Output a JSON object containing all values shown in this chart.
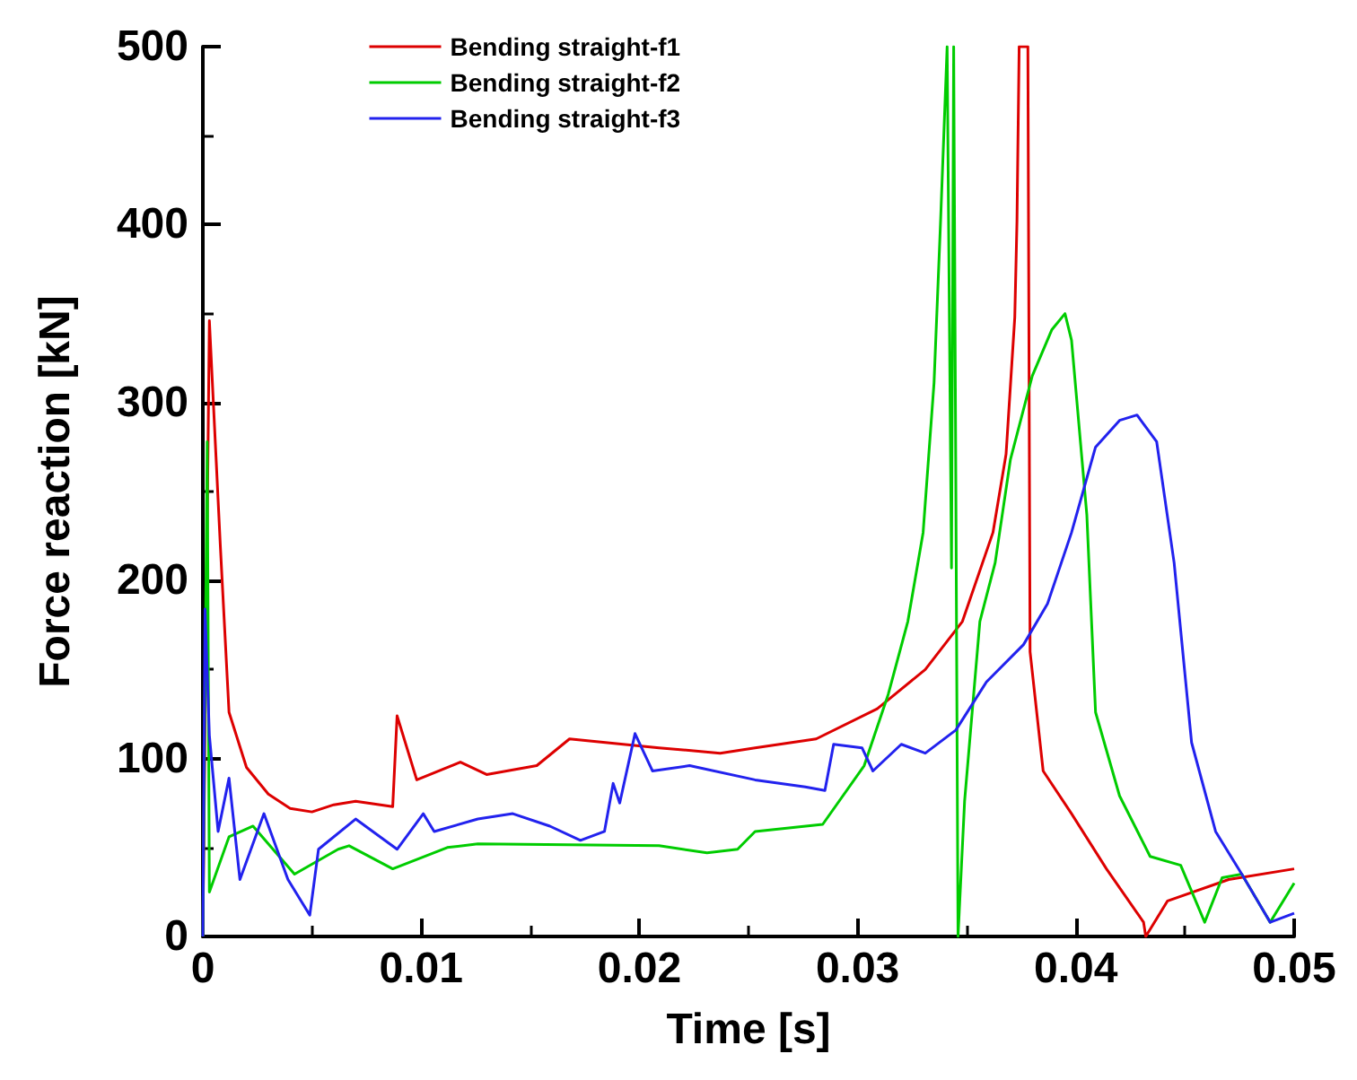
{
  "chart_data": {
    "type": "line",
    "xlabel": "Time [s]",
    "ylabel": "Force reaction [kN]",
    "xlim": [
      0,
      0.05
    ],
    "ylim": [
      0,
      500
    ],
    "xticks": [
      0,
      0.01,
      0.02,
      0.03,
      0.04,
      0.05
    ],
    "yticks": [
      0,
      100,
      200,
      300,
      400,
      500
    ],
    "legend": "top left",
    "series": [
      {
        "name": "Bending straight-f1",
        "color": "#dd0000",
        "x": [
          0,
          0.0003,
          0.0008,
          0.0012,
          0.002,
          0.003,
          0.004,
          0.005,
          0.006,
          0.007,
          0.0087,
          0.0089,
          0.0098,
          0.0118,
          0.013,
          0.0153,
          0.0168,
          0.0209,
          0.0237,
          0.0253,
          0.0281,
          0.0309,
          0.0331,
          0.0348,
          0.0362,
          0.0368,
          0.0372,
          0.0373,
          0.0374,
          0.0378,
          0.0379,
          0.0385,
          0.0398,
          0.0414,
          0.0431,
          0.0432,
          0.0442,
          0.047,
          0.05
        ],
        "values": [
          0,
          346,
          220,
          126,
          95,
          80,
          72,
          70,
          74,
          76,
          73,
          124,
          88,
          98,
          91,
          96,
          111,
          106,
          103,
          106,
          111,
          128,
          150,
          177,
          227,
          271,
          348,
          402,
          500,
          500,
          160,
          93,
          69,
          38,
          8,
          0,
          20,
          32,
          38
        ]
      },
      {
        "name": "Bending straight-f2",
        "color": "#00cc00",
        "x": [
          0,
          0.0002,
          0.0003,
          0.0012,
          0.0023,
          0.0042,
          0.0062,
          0.0067,
          0.0087,
          0.0112,
          0.0126,
          0.0209,
          0.0231,
          0.0245,
          0.0253,
          0.0284,
          0.0303,
          0.0314,
          0.0323,
          0.033,
          0.0335,
          0.0338,
          0.0341,
          0.0343,
          0.0344,
          0.0346,
          0.0349,
          0.0356,
          0.0363,
          0.037,
          0.038,
          0.0389,
          0.0395,
          0.0398,
          0.0405,
          0.0409,
          0.042,
          0.0434,
          0.0448,
          0.0459,
          0.0467,
          0.0476,
          0.0489,
          0.05
        ],
        "values": [
          0,
          278,
          25,
          56,
          62,
          35,
          49,
          51,
          38,
          50,
          52,
          51,
          47,
          49,
          59,
          63,
          96,
          136,
          177,
          227,
          311,
          402,
          500,
          207,
          500,
          0,
          76,
          177,
          210,
          268,
          315,
          341,
          350,
          335,
          237,
          126,
          79,
          45,
          40,
          8,
          33,
          35,
          8,
          30
        ]
      },
      {
        "name": "Bending straight-f3",
        "color": "#2222ee",
        "x": [
          0,
          0.0001,
          0.0003,
          0.0007,
          0.0012,
          0.0017,
          0.0028,
          0.0039,
          0.0049,
          0.0053,
          0.007,
          0.0089,
          0.0101,
          0.0106,
          0.0126,
          0.0142,
          0.0159,
          0.0173,
          0.0184,
          0.0188,
          0.0191,
          0.0198,
          0.0206,
          0.0223,
          0.0253,
          0.0276,
          0.0285,
          0.0289,
          0.0302,
          0.0307,
          0.032,
          0.0331,
          0.0345,
          0.0359,
          0.0376,
          0.0387,
          0.0398,
          0.0409,
          0.042,
          0.0428,
          0.0437,
          0.0445,
          0.0453,
          0.0464,
          0.0476,
          0.0489,
          0.05
        ],
        "values": [
          0,
          184,
          113,
          59,
          89,
          32,
          69,
          32,
          12,
          49,
          66,
          49,
          69,
          59,
          66,
          69,
          62,
          54,
          59,
          86,
          75,
          114,
          93,
          96,
          88,
          84,
          82,
          108,
          106,
          93,
          108,
          103,
          116,
          143,
          164,
          187,
          227,
          275,
          290,
          293,
          278,
          210,
          109,
          59,
          35,
          8,
          13
        ]
      }
    ]
  }
}
